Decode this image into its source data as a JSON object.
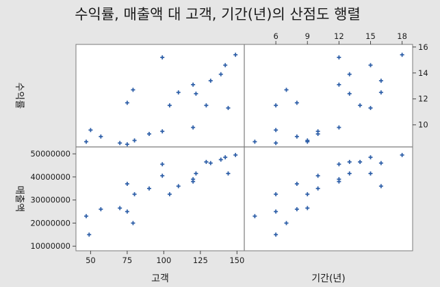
{
  "chart_data": {
    "type": "scatter",
    "title": "수익률, 매출액 대 고객, 기간(년)의 산점도 행렬",
    "variables": {
      "profit": {
        "label": "수익률"
      },
      "sales": {
        "label": "매출액"
      },
      "customers": {
        "label": "고객"
      },
      "period": {
        "label": "기간(년)"
      }
    },
    "axes": {
      "customers": {
        "range": [
          40,
          155
        ],
        "ticks": [
          50,
          75,
          100,
          125,
          150
        ]
      },
      "period": {
        "range": [
          3,
          19
        ],
        "ticks": [
          6,
          9,
          12,
          15,
          18
        ]
      },
      "profit": {
        "range": [
          8.3,
          16.2
        ],
        "ticks": [
          10,
          12,
          14,
          16
        ]
      },
      "sales": {
        "range": [
          8000000,
          53000000
        ],
        "ticks": [
          10000000,
          20000000,
          30000000,
          40000000,
          50000000
        ]
      }
    },
    "panels": [
      {
        "row": 0,
        "col": 0,
        "x_var": "customers",
        "y_var": "profit",
        "points": [
          [
            47,
            8.7
          ],
          [
            50,
            9.6
          ],
          [
            57,
            9.1
          ],
          [
            70,
            8.6
          ],
          [
            75,
            11.7
          ],
          [
            75,
            8.5
          ],
          [
            79,
            12.7
          ],
          [
            80,
            8.8
          ],
          [
            90,
            9.3
          ],
          [
            99,
            15.2
          ],
          [
            99,
            9.5
          ],
          [
            104,
            11.5
          ],
          [
            110,
            12.5
          ],
          [
            120,
            13.1
          ],
          [
            120,
            9.8
          ],
          [
            122,
            12.4
          ],
          [
            129,
            11.5
          ],
          [
            132,
            13.4
          ],
          [
            139,
            13.9
          ],
          [
            142,
            14.6
          ],
          [
            144,
            11.3
          ],
          [
            149,
            15.4
          ]
        ]
      },
      {
        "row": 0,
        "col": 1,
        "x_var": "period",
        "y_var": "profit",
        "points": [
          [
            4,
            8.7
          ],
          [
            6,
            9.6
          ],
          [
            6,
            11.5
          ],
          [
            6,
            8.6
          ],
          [
            7,
            12.7
          ],
          [
            8,
            11.7
          ],
          [
            8,
            9.1
          ],
          [
            9,
            8.8
          ],
          [
            9,
            8.7
          ],
          [
            10,
            9.5
          ],
          [
            10,
            9.3
          ],
          [
            12,
            15.2
          ],
          [
            12,
            13.1
          ],
          [
            12,
            9.8
          ],
          [
            13,
            13.9
          ],
          [
            13,
            12.4
          ],
          [
            14,
            11.5
          ],
          [
            15,
            14.6
          ],
          [
            15,
            11.3
          ],
          [
            16,
            13.4
          ],
          [
            16,
            12.5
          ],
          [
            18,
            15.4
          ]
        ]
      },
      {
        "row": 1,
        "col": 0,
        "x_var": "customers",
        "y_var": "sales",
        "points": [
          [
            47,
            23000000
          ],
          [
            49,
            15000000
          ],
          [
            57,
            26000000
          ],
          [
            70,
            26500000
          ],
          [
            75,
            37000000
          ],
          [
            75,
            25000000
          ],
          [
            79,
            20000000
          ],
          [
            80,
            32500000
          ],
          [
            90,
            35000000
          ],
          [
            99,
            45500000
          ],
          [
            99,
            40500000
          ],
          [
            104,
            32500000
          ],
          [
            110,
            36000000
          ],
          [
            120,
            38000000
          ],
          [
            120,
            39000000
          ],
          [
            122,
            41500000
          ],
          [
            129,
            46500000
          ],
          [
            132,
            46000000
          ],
          [
            139,
            47500000
          ],
          [
            142,
            48500000
          ],
          [
            144,
            41500000
          ],
          [
            149,
            49500000
          ]
        ]
      },
      {
        "row": 1,
        "col": 1,
        "x_var": "period",
        "y_var": "sales",
        "points": [
          [
            4,
            23000000
          ],
          [
            6,
            15000000
          ],
          [
            6,
            25000000
          ],
          [
            6,
            32500000
          ],
          [
            7,
            20000000
          ],
          [
            8,
            37000000
          ],
          [
            8,
            26000000
          ],
          [
            9,
            32500000
          ],
          [
            9,
            26500000
          ],
          [
            10,
            35000000
          ],
          [
            10,
            40500000
          ],
          [
            12,
            45500000
          ],
          [
            12,
            38000000
          ],
          [
            12,
            39000000
          ],
          [
            13,
            41500000
          ],
          [
            13,
            46500000
          ],
          [
            14,
            46500000
          ],
          [
            15,
            48500000
          ],
          [
            15,
            41500000
          ],
          [
            16,
            46000000
          ],
          [
            16,
            36000000
          ],
          [
            18,
            49500000
          ]
        ]
      }
    ],
    "point_color": "#2e5fa8",
    "marker": "plus",
    "grid": false,
    "legend": "none"
  }
}
